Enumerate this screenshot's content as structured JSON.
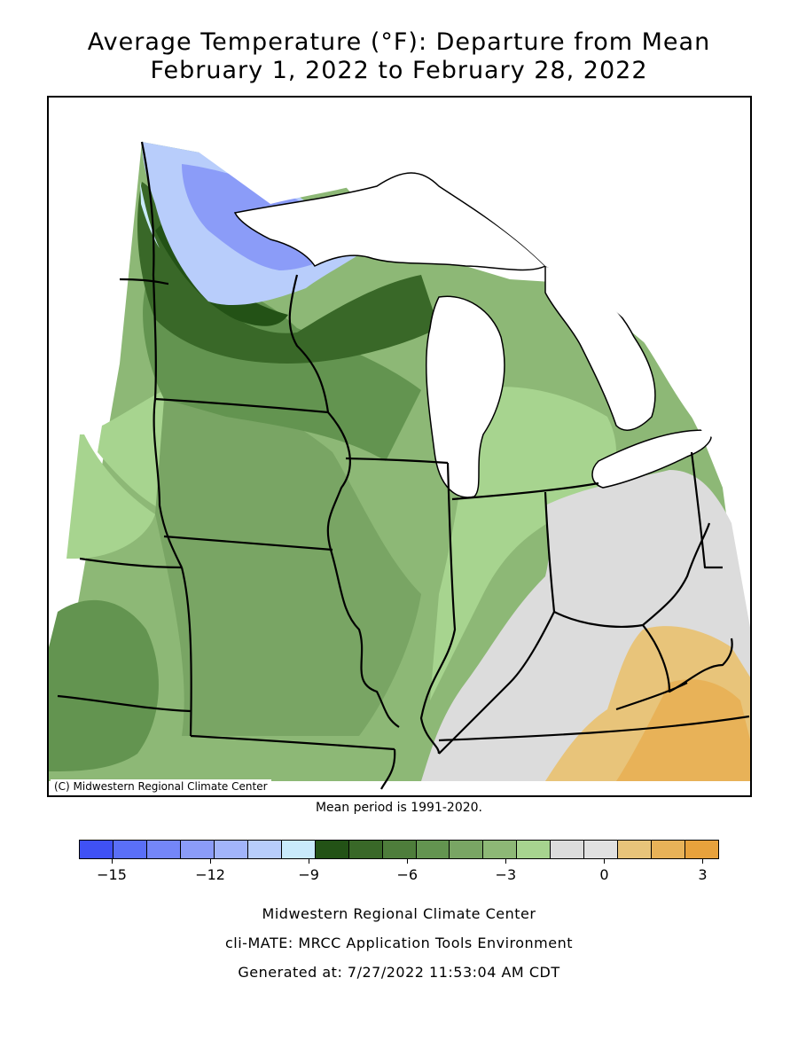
{
  "title": {
    "line1": "Average Temperature (°F): Departure from Mean",
    "line2": "February 1, 2022 to February 28, 2022"
  },
  "map": {
    "copyright": "(C) Midwestern Regional Climate Center",
    "mean_period_note": "Mean period is 1991-2020."
  },
  "legend": {
    "colors": [
      "#3f51f5",
      "#5a6ff7",
      "#7486f8",
      "#8b9cf8",
      "#a2b4fa",
      "#b8cdfb",
      "#c9eafb",
      "#235216",
      "#396828",
      "#4e7d3b",
      "#639450",
      "#79a564",
      "#8db876",
      "#a7d48f",
      "#dcdcdc",
      "#e1e1e1",
      "#e8c47a",
      "#e8b258",
      "#e8a23c"
    ],
    "ticks": [
      {
        "value": -15,
        "label": "-15"
      },
      {
        "value": -12,
        "label": "-12"
      },
      {
        "value": -9,
        "label": "-9"
      },
      {
        "value": -6,
        "label": "-6"
      },
      {
        "value": -3,
        "label": "-3"
      },
      {
        "value": 0,
        "label": "0"
      },
      {
        "value": 3,
        "label": "3"
      }
    ],
    "min": -16,
    "max": 3.5
  },
  "footer": {
    "line1": "Midwestern Regional Climate Center",
    "line2": "cli-MATE: MRCC Application Tools Environment",
    "line3": "Generated at: 7/27/2022 11:53:04 AM CDT"
  }
}
